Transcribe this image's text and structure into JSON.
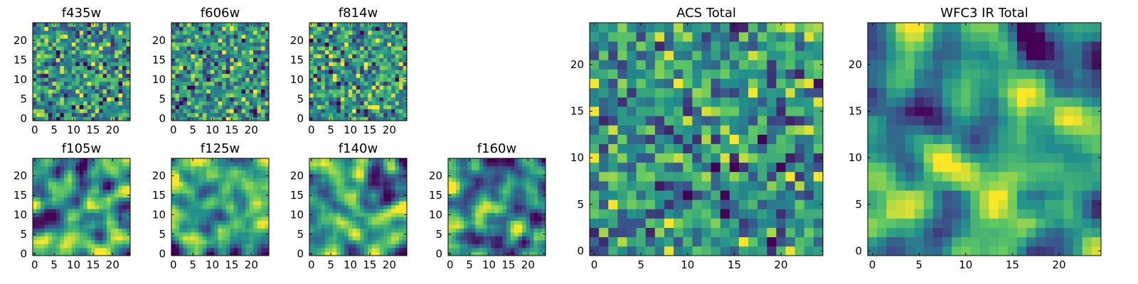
{
  "figure": {
    "title": "",
    "colormap": "viridis",
    "colormap_colors": [
      "#440154",
      "#3b528b",
      "#21918c",
      "#5ec962",
      "#fde725"
    ],
    "background": "#ffffff"
  },
  "chart_data": [
    {
      "id": "f435w",
      "type": "heatmap",
      "title": "f435w",
      "grid_size": 25,
      "x_ticks": [
        0,
        5,
        10,
        15,
        20
      ],
      "y_ticks": [
        0,
        5,
        10,
        15,
        20
      ],
      "xlim": [
        0,
        25
      ],
      "ylim": [
        0,
        25
      ],
      "value_range": [
        0,
        1
      ],
      "pattern": "uncorrelated per-pixel noise",
      "values_note": "random noise, values read off viridis colormap"
    },
    {
      "id": "f606w",
      "type": "heatmap",
      "title": "f606w",
      "grid_size": 25,
      "x_ticks": [
        0,
        5,
        10,
        15,
        20
      ],
      "y_ticks": [
        0,
        5,
        10,
        15,
        20
      ],
      "xlim": [
        0,
        25
      ],
      "ylim": [
        0,
        25
      ],
      "value_range": [
        0,
        1
      ],
      "pattern": "uncorrelated per-pixel noise"
    },
    {
      "id": "f814w",
      "type": "heatmap",
      "title": "f814w",
      "grid_size": 25,
      "x_ticks": [
        0,
        5,
        10,
        15,
        20
      ],
      "y_ticks": [
        0,
        5,
        10,
        15,
        20
      ],
      "xlim": [
        0,
        25
      ],
      "ylim": [
        0,
        25
      ],
      "value_range": [
        0,
        1
      ],
      "pattern": "uncorrelated per-pixel noise"
    },
    {
      "id": "f105w",
      "type": "heatmap",
      "title": "f105w",
      "grid_size": 25,
      "x_ticks": [
        0,
        5,
        10,
        15,
        20
      ],
      "y_ticks": [
        0,
        5,
        10,
        15,
        20
      ],
      "xlim": [
        0,
        25
      ],
      "ylim": [
        0,
        25
      ],
      "value_range": [
        0,
        1
      ],
      "pattern": "smoothed (correlated) noise"
    },
    {
      "id": "f125w",
      "type": "heatmap",
      "title": "f125w",
      "grid_size": 25,
      "x_ticks": [
        0,
        5,
        10,
        15,
        20
      ],
      "y_ticks": [
        0,
        5,
        10,
        15,
        20
      ],
      "xlim": [
        0,
        25
      ],
      "ylim": [
        0,
        25
      ],
      "value_range": [
        0,
        1
      ],
      "pattern": "smoothed (correlated) noise"
    },
    {
      "id": "f140w",
      "type": "heatmap",
      "title": "f140w",
      "grid_size": 25,
      "x_ticks": [
        0,
        5,
        10,
        15,
        20
      ],
      "y_ticks": [
        0,
        5,
        10,
        15,
        20
      ],
      "xlim": [
        0,
        25
      ],
      "ylim": [
        0,
        25
      ],
      "value_range": [
        0,
        1
      ],
      "pattern": "smoothed (correlated) noise"
    },
    {
      "id": "f160w",
      "type": "heatmap",
      "title": "f160w",
      "grid_size": 25,
      "x_ticks": [
        0,
        5,
        10,
        15,
        20
      ],
      "y_ticks": [
        0,
        5,
        10,
        15,
        20
      ],
      "xlim": [
        0,
        25
      ],
      "ylim": [
        0,
        25
      ],
      "value_range": [
        0,
        1
      ],
      "pattern": "smoothed (correlated) noise"
    },
    {
      "id": "acs_total",
      "type": "heatmap",
      "title": "ACS Total",
      "grid_size": 25,
      "x_ticks": [
        0,
        5,
        10,
        15,
        20
      ],
      "y_ticks": [
        0,
        5,
        10,
        15,
        20
      ],
      "xlim": [
        0,
        25
      ],
      "ylim": [
        0,
        25
      ],
      "value_range": [
        0,
        1
      ],
      "pattern": "uncorrelated per-pixel noise"
    },
    {
      "id": "wfc3_ir_total",
      "type": "heatmap",
      "title": "WFC3 IR Total",
      "grid_size": 25,
      "x_ticks": [
        0,
        5,
        10,
        15,
        20
      ],
      "y_ticks": [
        0,
        5,
        10,
        15,
        20
      ],
      "xlim": [
        0,
        25
      ],
      "ylim": [
        0,
        25
      ],
      "value_range": [
        0,
        1
      ],
      "pattern": "smoothed (correlated) noise"
    }
  ]
}
